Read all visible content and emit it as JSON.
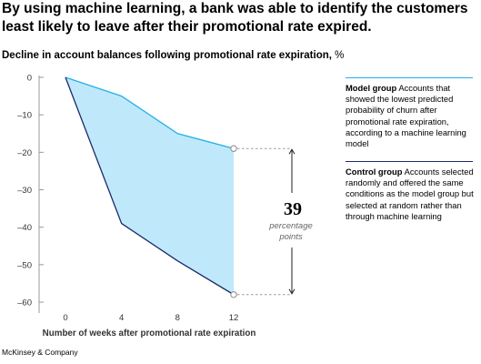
{
  "headline": "By using machine learning, a bank was able to identify the customers least likely to leave after their promotional rate expired.",
  "subtitle": {
    "text": "Decline in account balances following promotional rate expiration,",
    "unit": "%"
  },
  "legend": {
    "model": {
      "name": "Model group",
      "description": "Accounts that showed the lowest predicted probability of churn after promotional rate expiration, according to a machine learning model",
      "color": "#21b0e6"
    },
    "control": {
      "name": "Control group",
      "description": "Accounts selected randomly and offered the same conditions as the model group but selected at random rather than through machine learning",
      "color": "#1b2a6b"
    }
  },
  "annotation": {
    "value": "39",
    "line1": "percentage",
    "line2": "points"
  },
  "footer": "McKinsey & Company",
  "colors": {
    "fill": "#bfe9fb",
    "axis": "#999999",
    "dashed": "#9a9a9a"
  },
  "chart_data": {
    "type": "line",
    "title": "Decline in account balances following promotional rate expiration, %",
    "xlabel": "Number of weeks after promotional rate expiration",
    "ylabel": "",
    "x": [
      0,
      4,
      8,
      12
    ],
    "x_ticks": [
      "0",
      "4",
      "8",
      "12"
    ],
    "y_ticks": [
      "0",
      "–10",
      "–20",
      "–30",
      "–40",
      "–50",
      "–60"
    ],
    "y_tick_values": [
      0,
      -10,
      -20,
      -30,
      -40,
      -50,
      -60
    ],
    "xlim": [
      0,
      12
    ],
    "ylim": [
      -60,
      0
    ],
    "grid": false,
    "shaded_between_series": true,
    "series": [
      {
        "name": "Model group",
        "values": [
          0,
          -5,
          -15,
          -19
        ]
      },
      {
        "name": "Control group",
        "values": [
          0,
          -39,
          -49,
          -58
        ]
      }
    ]
  }
}
